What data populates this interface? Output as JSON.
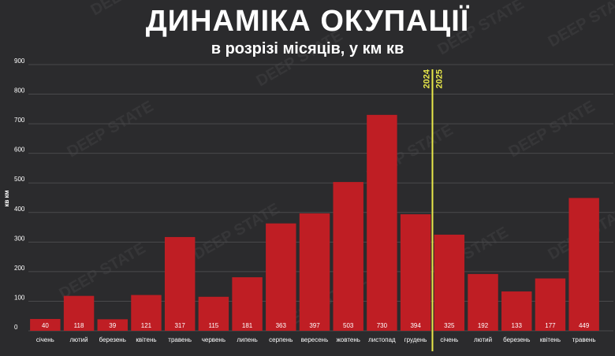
{
  "chart_data": {
    "type": "bar",
    "title": "ДИНАМІКА ОКУПАЦІЇ",
    "subtitle": "в розрізі місяців, у км кв",
    "ylabel": "кв км",
    "ylim": [
      0,
      900
    ],
    "yticks": [
      0,
      100,
      200,
      300,
      400,
      500,
      600,
      700,
      800,
      900
    ],
    "categories": [
      "січень",
      "лютий",
      "березень",
      "квітень",
      "травень",
      "червень",
      "липень",
      "серпень",
      "вересень",
      "жовтень",
      "листопад",
      "грудень",
      "січень",
      "лютий",
      "березень",
      "квітень",
      "травень"
    ],
    "values": [
      40,
      118,
      39,
      121,
      317,
      115,
      181,
      363,
      397,
      503,
      730,
      394,
      325,
      192,
      133,
      177,
      449
    ],
    "year_divider": {
      "before_label": "2024",
      "after_label": "2025",
      "after_index": 11
    },
    "grid": true,
    "watermark": "DEEP STATE",
    "colors": {
      "bar": "#bf1e24",
      "background": "#2b2b2d",
      "grid": "#4a4a4c",
      "divider": "#e8e84a"
    }
  }
}
